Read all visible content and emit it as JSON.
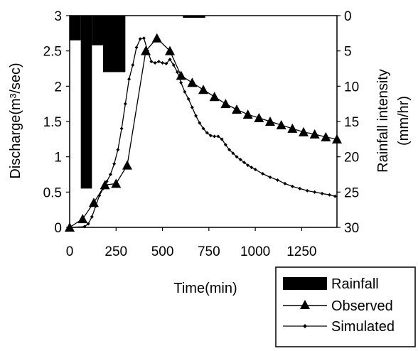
{
  "chart_data": {
    "type": "line",
    "xlabel": "Time(min)",
    "ylabel_left": "Discharge(m³/sec)",
    "ylabel_right_line1": "Rainfall intensity",
    "ylabel_right_line2": "(mm/hr)",
    "xlim": [
      0,
      1440
    ],
    "ylim_left": [
      0,
      3
    ],
    "ylim_right": [
      30,
      0
    ],
    "x_ticks": [
      "0",
      "250",
      "500",
      "750",
      "1000",
      "1250"
    ],
    "x_tick_values": [
      0,
      250,
      500,
      750,
      1000,
      1250
    ],
    "y_left_ticks": [
      "0",
      "0.5",
      "1",
      "1.5",
      "2",
      "2.5",
      "3"
    ],
    "y_left_tick_values": [
      0,
      0.5,
      1,
      1.5,
      2,
      2.5,
      3
    ],
    "y_right_ticks": [
      "30",
      "25",
      "20",
      "15",
      "10",
      "5",
      "0"
    ],
    "y_right_tick_values": [
      30,
      25,
      20,
      15,
      10,
      5,
      0
    ],
    "grid": false,
    "legend_position": "bottom-right",
    "legend": {
      "rainfall": "Rainfall",
      "observed": "Observed",
      "simulated": "Simulated"
    },
    "rainfall": {
      "name": "Rainfall",
      "axis": "right",
      "bars": [
        {
          "start": 0,
          "end": 60,
          "value": 3.5
        },
        {
          "start": 60,
          "end": 120,
          "value": 24.5
        },
        {
          "start": 120,
          "end": 180,
          "value": 4.2
        },
        {
          "start": 180,
          "end": 300,
          "value": 8.0
        },
        {
          "start": 610,
          "end": 730,
          "value": 0.3
        }
      ]
    },
    "series": [
      {
        "name": "Observed",
        "marker": "triangle",
        "x": [
          0,
          70,
          130,
          190,
          250,
          310,
          410,
          470,
          540,
          600,
          660,
          720,
          780,
          840,
          900,
          960,
          1020,
          1080,
          1140,
          1200,
          1260,
          1320,
          1380,
          1440
        ],
        "y": [
          0,
          0.12,
          0.35,
          0.6,
          0.62,
          0.88,
          2.5,
          2.68,
          2.5,
          2.15,
          2.05,
          1.95,
          1.85,
          1.75,
          1.67,
          1.6,
          1.55,
          1.5,
          1.45,
          1.4,
          1.35,
          1.32,
          1.28,
          1.25
        ]
      },
      {
        "name": "Simulated",
        "marker": "diamond-small",
        "x": [
          0,
          80,
          100,
          120,
          140,
          160,
          180,
          200,
          220,
          240,
          260,
          280,
          300,
          320,
          340,
          360,
          380,
          400,
          420,
          440,
          460,
          480,
          500,
          520,
          540,
          560,
          580,
          600,
          620,
          640,
          660,
          680,
          700,
          720,
          740,
          760,
          780,
          800,
          820,
          840,
          860,
          880,
          900,
          920,
          940,
          960,
          980,
          1000,
          1040,
          1080,
          1120,
          1160,
          1200,
          1240,
          1280,
          1320,
          1360,
          1400,
          1430
        ],
        "y": [
          0,
          0.01,
          0.05,
          0.15,
          0.3,
          0.45,
          0.55,
          0.65,
          0.75,
          0.9,
          1.1,
          1.4,
          1.75,
          2.1,
          2.3,
          2.55,
          2.67,
          2.68,
          2.5,
          2.35,
          2.33,
          2.35,
          2.33,
          2.32,
          2.38,
          2.3,
          2.2,
          2.05,
          1.92,
          1.82,
          1.7,
          1.58,
          1.48,
          1.4,
          1.34,
          1.3,
          1.29,
          1.29,
          1.25,
          1.17,
          1.1,
          1.05,
          1.0,
          0.96,
          0.92,
          0.88,
          0.85,
          0.82,
          0.76,
          0.71,
          0.67,
          0.62,
          0.58,
          0.55,
          0.52,
          0.5,
          0.48,
          0.46,
          0.44
        ]
      }
    ]
  }
}
